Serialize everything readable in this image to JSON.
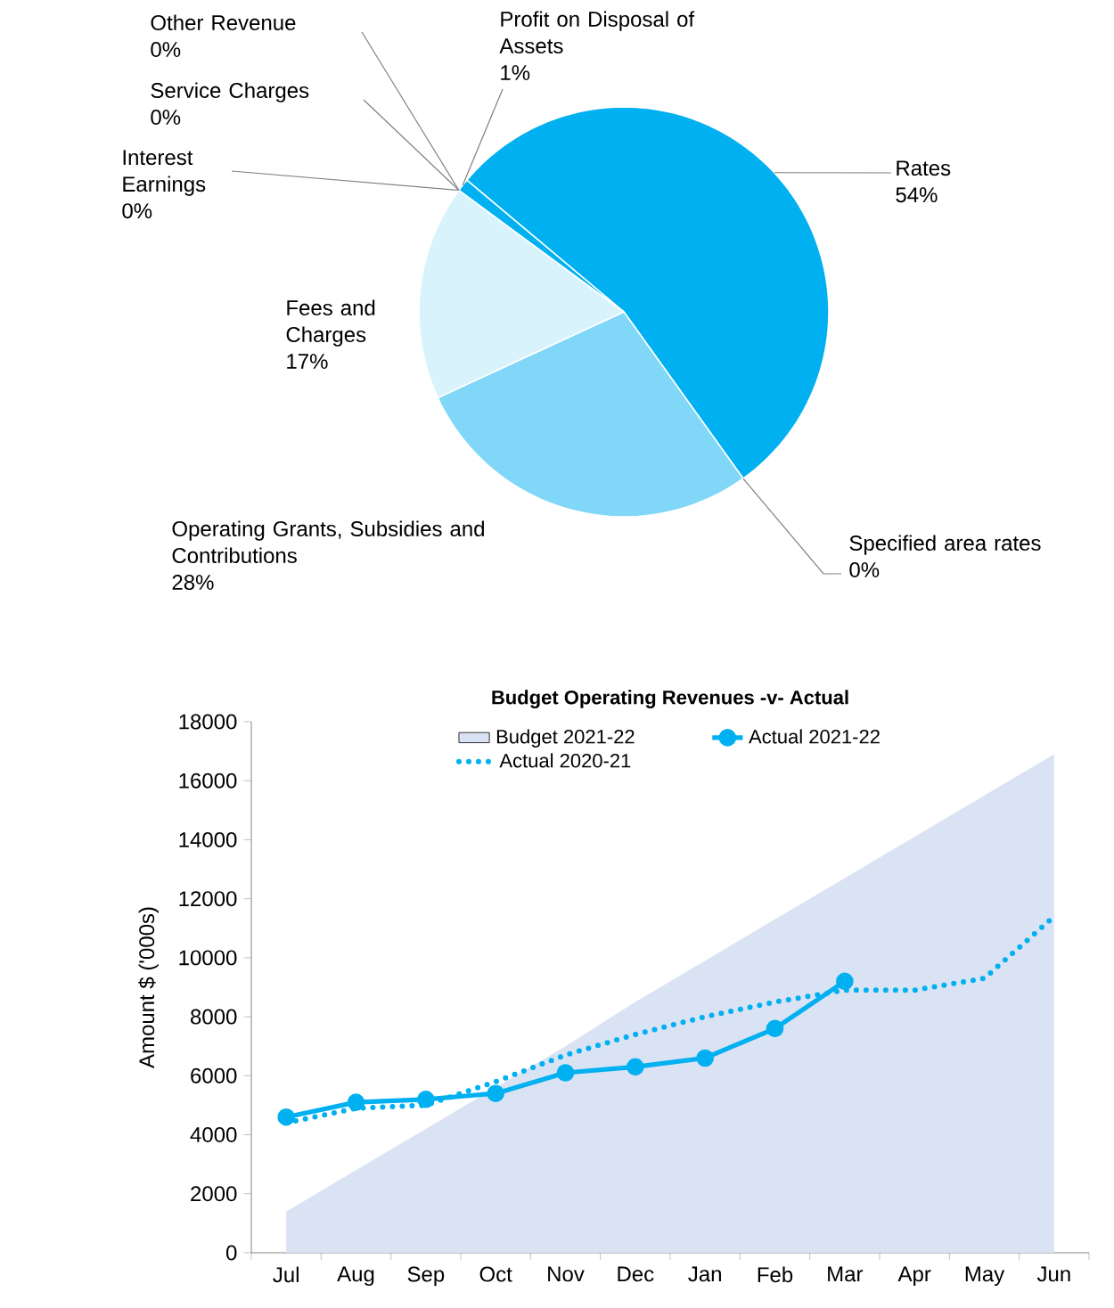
{
  "chart_data": [
    {
      "type": "pie",
      "categories": [
        "Rates",
        "Specified area rates",
        "Operating Grants, Subsidies and Contributions",
        "Fees and Charges",
        "Interest Earnings",
        "Other Revenue",
        "Service Charges",
        "Profit on Disposal of Assets"
      ],
      "values": [
        54,
        0,
        28,
        17,
        0,
        0,
        0,
        1
      ],
      "value_labels": [
        "54%",
        "0%",
        "28%",
        "17%",
        "0%",
        "0%",
        "0%",
        "1%"
      ],
      "colors": [
        "#00b0f0",
        "#00b0f0",
        "#80d7f7",
        "#d9f3fd",
        "#00b0f0",
        "#00b0f0",
        "#00b0f0",
        "#00b0f0"
      ]
    },
    {
      "type": "line",
      "title": "Budget Operating Revenues -v- Actual",
      "ylabel": "Amount $ ('000s)",
      "categories": [
        "Jul",
        "Aug",
        "Sep",
        "Oct",
        "Nov",
        "Dec",
        "Jan",
        "Feb",
        "Mar",
        "Apr",
        "May",
        "Jun"
      ],
      "series": [
        {
          "name": "Budget 2021-22",
          "type": "area",
          "color": "#dae3f3",
          "values": [
            1400,
            2800,
            4200,
            5600,
            7000,
            8500,
            9900,
            11300,
            12700,
            14100,
            15500,
            16900
          ]
        },
        {
          "name": "Actual 2021-22",
          "type": "line",
          "color": "#00b0f0",
          "marker": "circle",
          "line_style": "solid",
          "values": [
            4600,
            5100,
            5200,
            5400,
            6100,
            6300,
            6600,
            7600,
            9200,
            null,
            null,
            null
          ]
        },
        {
          "name": "Actual 2020-21",
          "type": "line",
          "color": "#00b0f0",
          "line_style": "dotted",
          "values": [
            4400,
            4900,
            5000,
            5800,
            6700,
            7400,
            8000,
            8500,
            8900,
            8900,
            9300,
            11400
          ]
        }
      ],
      "ylim": [
        0,
        18000
      ],
      "yticks": [
        0,
        2000,
        4000,
        6000,
        8000,
        10000,
        12000,
        14000,
        16000,
        18000
      ],
      "legend": "top"
    }
  ]
}
